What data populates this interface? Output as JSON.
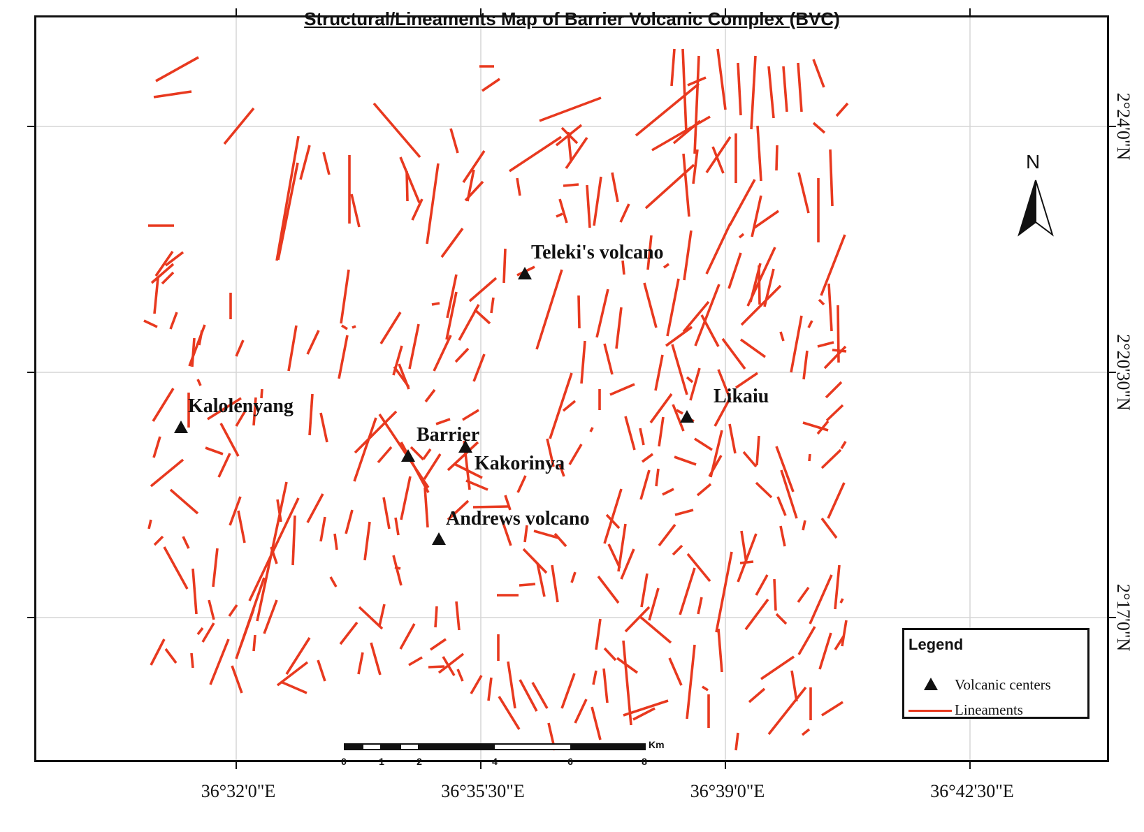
{
  "title": "Structural/Lineaments Map of Barrier Volcanic Complex (BVC)",
  "colors": {
    "lineament": "#e8391f",
    "grid": "#d6d6d6",
    "frame": "#111111",
    "volcanic_center": "#111111"
  },
  "x_axis_labels": [
    "36°32'0\"E",
    "36°35'30\"E",
    "36°39'0\"E",
    "36°42'30\"E"
  ],
  "y_axis_labels": [
    "2°24'0\"N",
    "2°20'30\"N",
    "2°17'0\"N"
  ],
  "north_arrow": {
    "label": "N",
    "icon": "north-arrow-icon"
  },
  "volcanic_centers": [
    {
      "name": "Teleki's volcano",
      "icon": "triangle-icon"
    },
    {
      "name": "Kalolenyang",
      "icon": "triangle-icon"
    },
    {
      "name": "Likaiu",
      "icon": "triangle-icon"
    },
    {
      "name": "Barrier",
      "icon": "triangle-icon"
    },
    {
      "name": "Kakorinya",
      "icon": "triangle-icon"
    },
    {
      "name": "Andrews volcano",
      "icon": "triangle-icon"
    }
  ],
  "scale_bar": {
    "unit": "Km",
    "ticks": [
      "0",
      "1",
      "2",
      "4",
      "6",
      "8"
    ]
  },
  "legend": {
    "title": "Legend",
    "items": [
      {
        "label": "Volcanic centers",
        "symbol": "triangle-icon"
      },
      {
        "label": "Lineaments",
        "symbol": "line-icon"
      }
    ]
  }
}
